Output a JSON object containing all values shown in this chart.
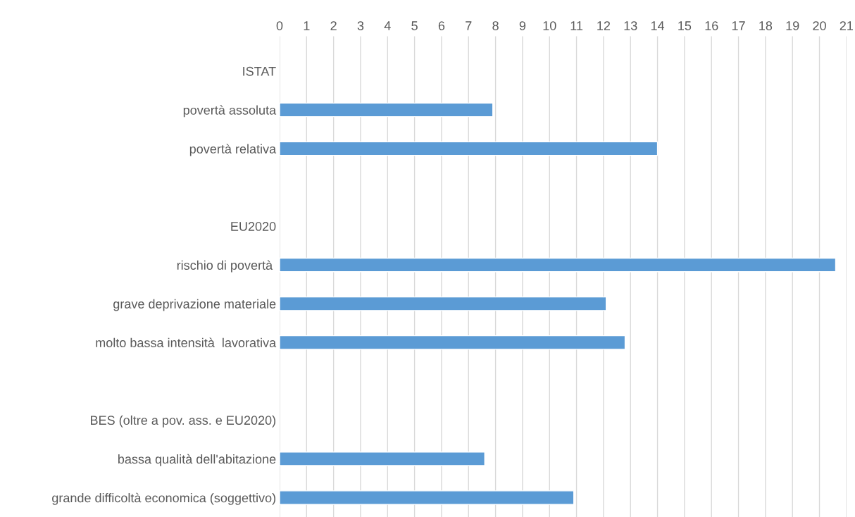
{
  "chart_data": {
    "type": "bar",
    "orientation": "horizontal",
    "categories": [
      "ISTAT",
      "povertà assoluta",
      "povertà relativa",
      null,
      "EU2020",
      "rischio di povertà ",
      "grave deprivazione materiale",
      "molto bassa intensità  lavorativa",
      null,
      "BES (oltre a pov. ass. e EU2020)",
      "bassa qualità dell'abitazione",
      "grande difficoltà economica (soggettivo)"
    ],
    "values": [
      null,
      7.9,
      14.0,
      null,
      null,
      20.6,
      12.1,
      12.8,
      null,
      null,
      7.6,
      10.9
    ],
    "color": "#5b9bd5",
    "xlim": [
      0,
      21
    ],
    "xticks": [
      0,
      1,
      2,
      3,
      4,
      5,
      6,
      7,
      8,
      9,
      10,
      11,
      12,
      13,
      14,
      15,
      16,
      17,
      18,
      19,
      20,
      21
    ],
    "grid": "x"
  }
}
